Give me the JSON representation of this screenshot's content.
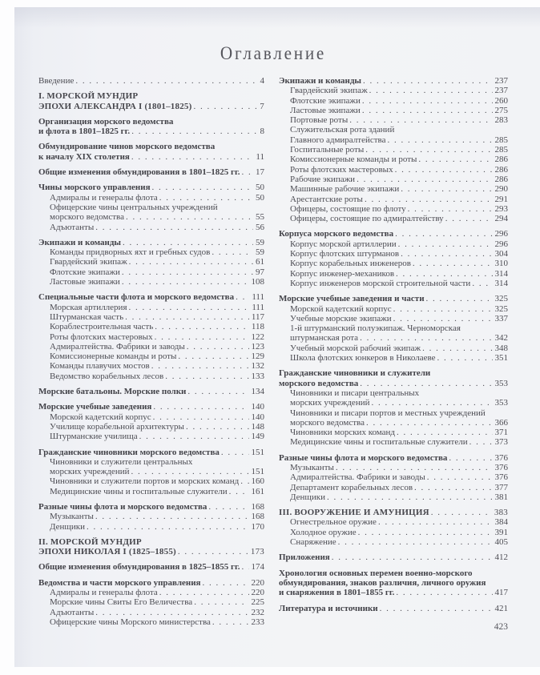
{
  "page_title": "Оглавление",
  "folio": "423",
  "colors": {
    "page_background": "#f2f3f6",
    "page_edge_shadow": "#e6e8ef",
    "backdrop": "#fdfdfe",
    "text": "#4d4d54"
  },
  "toc": {
    "left": [
      {
        "style": "plain",
        "lines": [
          "Введение"
        ],
        "page": "4"
      },
      {
        "style": "chapter",
        "lines": [
          "I. МОРСКОЙ МУНДИР",
          "ЭПОХИ АЛЕКСАНДРА I (1801–1825)"
        ],
        "page": "7"
      },
      {
        "style": "section",
        "lines": [
          "Организация морского ведомства",
          "и флота в 1801–1825 гг."
        ],
        "page": "8"
      },
      {
        "style": "section",
        "lines": [
          "Обмундирование чинов морского ведомства",
          "к началу XIX столетия"
        ],
        "page": "11"
      },
      {
        "style": "section",
        "lines": [
          "Общие изменения обмундирования в 1801–1825 гг."
        ],
        "page": "17"
      },
      {
        "style": "section",
        "lines": [
          "Чины морского управления"
        ],
        "page": "50"
      },
      {
        "style": "entry",
        "lines": [
          "Адмиралы и генералы флота"
        ],
        "page": "50"
      },
      {
        "style": "entry",
        "lines": [
          "Офицерские чины центральных учреждений",
          "морского ведомства"
        ],
        "page": "55"
      },
      {
        "style": "entry",
        "lines": [
          "Адъютанты"
        ],
        "page": "56"
      },
      {
        "style": "section",
        "lines": [
          "Экипажи и команды"
        ],
        "page": "59"
      },
      {
        "style": "entry",
        "lines": [
          "Команды придворных яхт и гребных судов"
        ],
        "page": "59"
      },
      {
        "style": "entry",
        "lines": [
          "Гвардейский экипаж"
        ],
        "page": "61"
      },
      {
        "style": "entry",
        "lines": [
          "Флотские экипажи"
        ],
        "page": "97"
      },
      {
        "style": "entry",
        "lines": [
          "Ластовые экипажи"
        ],
        "page": "108"
      },
      {
        "style": "section",
        "lines": [
          "Специальные части флота и морского ведомства"
        ],
        "page": "111"
      },
      {
        "style": "entry",
        "lines": [
          "Морская артиллерия"
        ],
        "page": "111"
      },
      {
        "style": "entry",
        "lines": [
          "Штурманская часть"
        ],
        "page": "117"
      },
      {
        "style": "entry",
        "lines": [
          "Кораблестроительная часть"
        ],
        "page": "118"
      },
      {
        "style": "entry",
        "lines": [
          "Роты флотских мастеровых"
        ],
        "page": "122"
      },
      {
        "style": "entry",
        "lines": [
          "Адмиралтейства. Фабрики и заводы"
        ],
        "page": "123"
      },
      {
        "style": "entry",
        "lines": [
          "Комиссионерные команды и роты"
        ],
        "page": "129"
      },
      {
        "style": "entry",
        "lines": [
          "Команды плавучих мостов"
        ],
        "page": "132"
      },
      {
        "style": "entry",
        "lines": [
          "Ведомство корабельных лесов"
        ],
        "page": "133"
      },
      {
        "style": "section",
        "lines": [
          "Морские батальоны. Морские полки"
        ],
        "page": "134"
      },
      {
        "style": "section",
        "lines": [
          "Морские учебные заведения"
        ],
        "page": "140"
      },
      {
        "style": "entry",
        "lines": [
          "Морской кадетский корпус"
        ],
        "page": "140"
      },
      {
        "style": "entry",
        "lines": [
          "Училище корабельной архитектуры"
        ],
        "page": "148"
      },
      {
        "style": "entry",
        "lines": [
          "Штурманские училища"
        ],
        "page": "149"
      },
      {
        "style": "section",
        "lines": [
          "Гражданские чиновники морского ведомства"
        ],
        "page": "151"
      },
      {
        "style": "entry",
        "lines": [
          "Чиновники и служители центральных",
          "морских учреждений"
        ],
        "page": "151"
      },
      {
        "style": "entry",
        "lines": [
          "Чиновники и служители портов и морских команд"
        ],
        "page": "160"
      },
      {
        "style": "entry",
        "lines": [
          "Медицинские чины и госпитальные служители"
        ],
        "page": "161"
      },
      {
        "style": "section",
        "lines": [
          "Разные чины флота и морского ведомства"
        ],
        "page": "168"
      },
      {
        "style": "entry",
        "lines": [
          "Музыканты"
        ],
        "page": "168"
      },
      {
        "style": "entry",
        "lines": [
          "Денщики"
        ],
        "page": "170"
      },
      {
        "style": "chapter",
        "lines": [
          "II. МОРСКОЙ МУНДИР",
          "ЭПОХИ НИКОЛАЯ I (1825–1855)"
        ],
        "page": "173"
      },
      {
        "style": "section",
        "lines": [
          "Общие изменения обмундирования в 1825–1855 гг."
        ],
        "page": "174"
      },
      {
        "style": "section",
        "lines": [
          "Ведомства и части морского управления"
        ],
        "page": "220"
      },
      {
        "style": "entry",
        "lines": [
          "Адмиралы и генералы флота"
        ],
        "page": "220"
      },
      {
        "style": "entry",
        "lines": [
          "Морские чины Свиты Его Величества"
        ],
        "page": "225"
      },
      {
        "style": "entry",
        "lines": [
          "Адъютанты"
        ],
        "page": "232"
      },
      {
        "style": "entry",
        "lines": [
          "Офицерские чины Морского министерства"
        ],
        "page": "233"
      }
    ],
    "right": [
      {
        "style": "section",
        "lines": [
          "Экипажи и команды"
        ],
        "page": "237"
      },
      {
        "style": "entry",
        "lines": [
          "Гвардейский экипаж"
        ],
        "page": "237"
      },
      {
        "style": "entry",
        "lines": [
          "Флотские экипажи"
        ],
        "page": "260"
      },
      {
        "style": "entry",
        "lines": [
          "Ластовые экипажи"
        ],
        "page": "275"
      },
      {
        "style": "entry",
        "lines": [
          "Портовые роты"
        ],
        "page": "283"
      },
      {
        "style": "entry",
        "lines": [
          "Служительская рота зданий",
          "Главного адмиралтейства"
        ],
        "page": "285"
      },
      {
        "style": "entry",
        "lines": [
          "Госпитальные роты"
        ],
        "page": "285"
      },
      {
        "style": "entry",
        "lines": [
          "Комиссионерные команды и роты"
        ],
        "page": "286"
      },
      {
        "style": "entry",
        "lines": [
          "Роты флотских мастеровых"
        ],
        "page": "286"
      },
      {
        "style": "entry",
        "lines": [
          "Рабочие экипажи"
        ],
        "page": "286"
      },
      {
        "style": "entry",
        "lines": [
          "Машинные рабочие экипажи"
        ],
        "page": "290"
      },
      {
        "style": "entry",
        "lines": [
          "Арестантские роты"
        ],
        "page": "291"
      },
      {
        "style": "entry",
        "lines": [
          "Офицеры, состоящие по флоту"
        ],
        "page": "293"
      },
      {
        "style": "entry",
        "lines": [
          "Офицеры, состоящие по адмиралтейству"
        ],
        "page": "294"
      },
      {
        "style": "section",
        "lines": [
          "Корпуса морского ведомства"
        ],
        "page": "296"
      },
      {
        "style": "entry",
        "lines": [
          "Корпус морской артиллерии"
        ],
        "page": "296"
      },
      {
        "style": "entry",
        "lines": [
          "Корпус флотских штурманов"
        ],
        "page": "304"
      },
      {
        "style": "entry",
        "lines": [
          "Корпус корабельных инженеров"
        ],
        "page": "310"
      },
      {
        "style": "entry",
        "lines": [
          "Корпус инженер-механиков"
        ],
        "page": "314"
      },
      {
        "style": "entry",
        "lines": [
          "Корпус инженеров морской строительной части"
        ],
        "page": "314"
      },
      {
        "style": "section",
        "lines": [
          "Морские учебные заведения и части"
        ],
        "page": "325"
      },
      {
        "style": "entry",
        "lines": [
          "Морской кадетский корпус"
        ],
        "page": "325"
      },
      {
        "style": "entry",
        "lines": [
          "Учебные морские экипажи"
        ],
        "page": "337"
      },
      {
        "style": "entry",
        "lines": [
          "1-й штурманский полуэкипаж. Черноморская",
          "штурманская рота"
        ],
        "page": "342"
      },
      {
        "style": "entry",
        "lines": [
          "Учебный морской рабочий экипаж"
        ],
        "page": "348"
      },
      {
        "style": "entry",
        "lines": [
          "Школа флотских юнкеров в Николаеве"
        ],
        "page": "351"
      },
      {
        "style": "section",
        "lines": [
          "Гражданские чиновники и служители",
          "морского ведомства"
        ],
        "page": "353"
      },
      {
        "style": "entry",
        "lines": [
          "Чиновники и писари центральных",
          "морских учреждений"
        ],
        "page": "353"
      },
      {
        "style": "entry",
        "lines": [
          "Чиновники и писари портов и местных учреждений",
          "морского ведомства"
        ],
        "page": "366"
      },
      {
        "style": "entry",
        "lines": [
          "Чиновники морских команд"
        ],
        "page": "371"
      },
      {
        "style": "entry",
        "lines": [
          "Медицинские чины и госпитальные служители"
        ],
        "page": "373"
      },
      {
        "style": "section",
        "lines": [
          "Разные чины флота и морского ведомства"
        ],
        "page": "376"
      },
      {
        "style": "entry",
        "lines": [
          "Музыканты"
        ],
        "page": "376"
      },
      {
        "style": "entry",
        "lines": [
          "Адмиралтейства. Фабрики и заводы"
        ],
        "page": "376"
      },
      {
        "style": "entry",
        "lines": [
          "Департамент корабельных лесов"
        ],
        "page": "377"
      },
      {
        "style": "entry",
        "lines": [
          "Денщики"
        ],
        "page": "381"
      },
      {
        "style": "chapter",
        "lines": [
          "III. ВООРУЖЕНИЕ И АМУНИЦИЯ"
        ],
        "page": "383"
      },
      {
        "style": "entry",
        "lines": [
          "Огнестрельное оружие"
        ],
        "page": "384"
      },
      {
        "style": "entry",
        "lines": [
          "Холодное оружие"
        ],
        "page": "391"
      },
      {
        "style": "entry",
        "lines": [
          "Снаряжение"
        ],
        "page": "405"
      },
      {
        "style": "section",
        "lines": [
          "Приложения"
        ],
        "page": "412"
      },
      {
        "style": "section",
        "lines": [
          "Хронология основных перемен военно-морского",
          "обмундирования, знаков различия, личного оружия",
          "и снаряжения в 1801–1855 гг."
        ],
        "page": "417"
      },
      {
        "style": "section",
        "lines": [
          "Литература и источники"
        ],
        "page": "421"
      }
    ]
  }
}
